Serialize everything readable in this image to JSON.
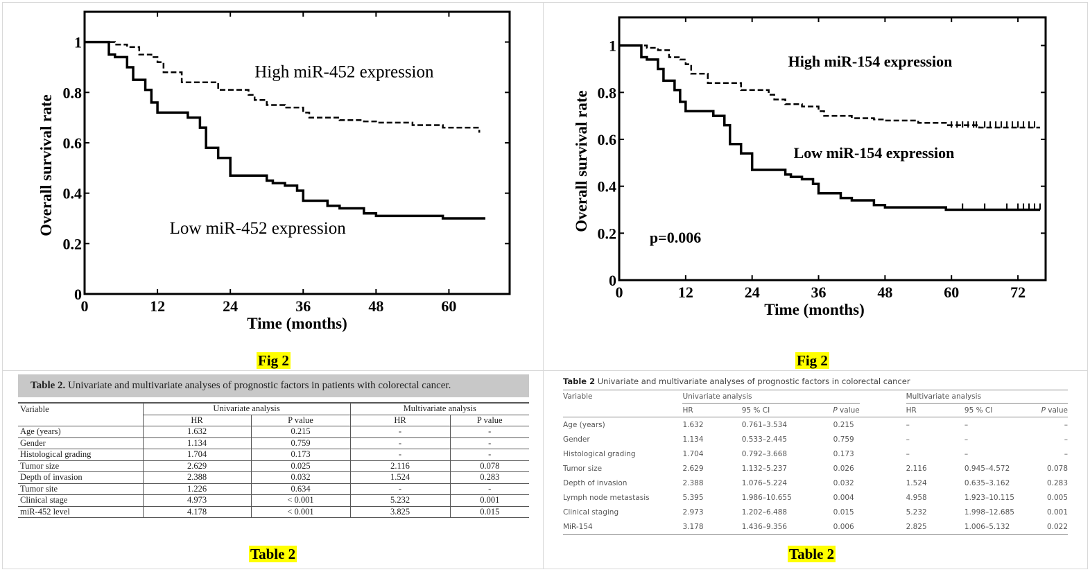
{
  "chart_data": [
    {
      "type": "line",
      "subtype": "kaplan-meier-step",
      "title": "",
      "xlabel": "Time (months)",
      "ylabel": "Overall survival rate",
      "xlim": [
        0,
        70
      ],
      "ylim": [
        0,
        1.12
      ],
      "xticks": [
        0,
        12,
        24,
        36,
        48,
        60
      ],
      "yticks": [
        0,
        0.2,
        0.4,
        0.6,
        0.8,
        1
      ],
      "ytick_labels": [
        "0",
        "0.2",
        "0.4",
        "0.6",
        "0.8",
        "1"
      ],
      "grid": false,
      "annotations": [
        {
          "text": "High miR-452 expression",
          "x": 28,
          "y": 0.86
        },
        {
          "text": "Low miR-452 expression",
          "x": 14,
          "y": 0.24
        }
      ],
      "series": [
        {
          "name": "High miR-452 expression",
          "style": "dashed",
          "x": [
            0,
            5,
            7,
            9,
            11,
            12,
            13,
            16,
            22,
            27,
            28,
            30,
            33,
            36,
            37,
            42,
            46,
            48,
            54,
            59,
            65,
            65
          ],
          "y": [
            1,
            0.99,
            0.98,
            0.95,
            0.94,
            0.92,
            0.88,
            0.84,
            0.81,
            0.79,
            0.77,
            0.75,
            0.74,
            0.72,
            0.7,
            0.69,
            0.685,
            0.68,
            0.67,
            0.66,
            0.66,
            0.64
          ]
        },
        {
          "name": "Low miR-452 expression",
          "style": "solid",
          "x": [
            0,
            4,
            5,
            7,
            8,
            10,
            11,
            12,
            17,
            19,
            20,
            22,
            24,
            30,
            31,
            33,
            35,
            36,
            40,
            42,
            46,
            48,
            59,
            66
          ],
          "y": [
            1,
            0.95,
            0.94,
            0.9,
            0.85,
            0.81,
            0.76,
            0.72,
            0.7,
            0.66,
            0.58,
            0.54,
            0.47,
            0.45,
            0.44,
            0.43,
            0.41,
            0.37,
            0.35,
            0.34,
            0.32,
            0.31,
            0.3,
            0.3
          ]
        }
      ]
    },
    {
      "type": "line",
      "subtype": "kaplan-meier-step",
      "title": "",
      "xlabel": "Time (months)",
      "ylabel": "Overall survival rate",
      "xlim": [
        0,
        77
      ],
      "ylim": [
        0,
        1.12
      ],
      "xticks": [
        0,
        12,
        24,
        36,
        48,
        60,
        72
      ],
      "yticks": [
        0,
        0.2,
        0.4,
        0.6,
        0.8,
        1
      ],
      "ytick_labels": [
        "0",
        "0.2",
        "0.4",
        "0.6",
        "0.8",
        "1"
      ],
      "grid": false,
      "annotations": [
        {
          "text": "High miR-154 expression",
          "x": 30.5,
          "y": 0.91
        },
        {
          "text": "Low miR-154 expression",
          "x": 31.5,
          "y": 0.52
        },
        {
          "text": "p=0.006",
          "x": 5.5,
          "y": 0.16
        }
      ],
      "series": [
        {
          "name": "High miR-154 expression",
          "style": "dashed",
          "x": [
            0,
            5,
            7,
            9,
            11,
            12,
            13,
            16,
            22,
            27,
            28,
            30,
            33,
            36,
            37,
            42,
            46,
            48,
            54,
            59,
            65,
            76
          ],
          "y": [
            1,
            0.99,
            0.98,
            0.95,
            0.94,
            0.92,
            0.88,
            0.84,
            0.81,
            0.79,
            0.77,
            0.75,
            0.74,
            0.72,
            0.7,
            0.69,
            0.685,
            0.68,
            0.67,
            0.66,
            0.65,
            0.65
          ],
          "censor_marks_x": [
            60,
            61,
            62,
            63,
            64,
            64.5,
            66,
            67,
            68,
            69,
            70,
            71,
            72,
            73,
            74,
            75
          ]
        },
        {
          "name": "Low miR-154 expression",
          "style": "solid",
          "x": [
            0,
            4,
            5,
            7,
            8,
            10,
            11,
            12,
            17,
            19,
            20,
            22,
            24,
            30,
            31,
            33,
            35,
            36,
            40,
            42,
            46,
            48,
            59,
            76
          ],
          "y": [
            1,
            0.95,
            0.94,
            0.9,
            0.85,
            0.81,
            0.76,
            0.72,
            0.7,
            0.66,
            0.58,
            0.54,
            0.47,
            0.45,
            0.44,
            0.43,
            0.41,
            0.37,
            0.35,
            0.34,
            0.32,
            0.31,
            0.3,
            0.3
          ],
          "censor_marks_x": [
            62,
            66,
            70,
            72,
            73,
            74,
            75,
            76
          ]
        }
      ]
    }
  ],
  "labels": {
    "fig_left": "Fig 2",
    "fig_right": "Fig 2",
    "table_left": "Table 2",
    "table_right": "Table 2"
  },
  "table_left": {
    "caption_bold": "Table 2.",
    "caption_text": " Univariate and multivariate analyses of prognostic factors in patients with colorectal cancer.",
    "header": {
      "variable": "Variable",
      "univariate": "Univariate analysis",
      "multivariate": "Multivariate analysis",
      "hr": "HR",
      "pvalue": "P value"
    },
    "rows": [
      {
        "variable": "Age (years)",
        "uni_hr": "1.632",
        "uni_p": "0.215",
        "multi_hr": "-",
        "multi_p": "-"
      },
      {
        "variable": "Gender",
        "uni_hr": "1.134",
        "uni_p": "0.759",
        "multi_hr": "-",
        "multi_p": "-"
      },
      {
        "variable": "Histological grading",
        "uni_hr": "1.704",
        "uni_p": "0.173",
        "multi_hr": "-",
        "multi_p": "-"
      },
      {
        "variable": "Tumor size",
        "uni_hr": "2.629",
        "uni_p": "0.025",
        "multi_hr": "2.116",
        "multi_p": "0.078"
      },
      {
        "variable": "Depth of invasion",
        "uni_hr": "2.388",
        "uni_p": "0.032",
        "multi_hr": "1.524",
        "multi_p": "0.283"
      },
      {
        "variable": "Tumor site",
        "uni_hr": "1.226",
        "uni_p": "0.634",
        "multi_hr": "-",
        "multi_p": "-"
      },
      {
        "variable": "Clinical stage",
        "uni_hr": "4.973",
        "uni_p": "< 0.001",
        "multi_hr": "5.232",
        "multi_p": "0.001"
      },
      {
        "variable": "miR-452 level",
        "uni_hr": "4.178",
        "uni_p": "< 0.001",
        "multi_hr": "3.825",
        "multi_p": "0.015"
      }
    ]
  },
  "table_right": {
    "caption_bold": "Table 2",
    "caption_text": " Univariate and multivariate analyses of prognostic factors in colorectal cancer",
    "header": {
      "variable": "Variable",
      "univariate": "Univariate analysis",
      "multivariate": "Multivariate analysis",
      "hr": "HR",
      "ci": "95 % CI",
      "p_italic": "P",
      "p_rest": " value"
    },
    "rows": [
      {
        "variable": "Age (years)",
        "uni_hr": "1.632",
        "uni_ci": "0.761–3.534",
        "uni_p": "0.215",
        "multi_hr": "–",
        "multi_ci": "–",
        "multi_p": "–"
      },
      {
        "variable": "Gender",
        "uni_hr": "1.134",
        "uni_ci": "0.533–2.445",
        "uni_p": "0.759",
        "multi_hr": "–",
        "multi_ci": "–",
        "multi_p": "–"
      },
      {
        "variable": "Histological grading",
        "uni_hr": "1.704",
        "uni_ci": "0.792–3.668",
        "uni_p": "0.173",
        "multi_hr": "–",
        "multi_ci": "–",
        "multi_p": "–"
      },
      {
        "variable": "Tumor size",
        "uni_hr": "2.629",
        "uni_ci": "1.132–5.237",
        "uni_p": "0.026",
        "multi_hr": "2.116",
        "multi_ci": "0.945–4.572",
        "multi_p": "0.078"
      },
      {
        "variable": "Depth of invasion",
        "uni_hr": "2.388",
        "uni_ci": "1.076–5.224",
        "uni_p": "0.032",
        "multi_hr": "1.524",
        "multi_ci": "0.635–3.162",
        "multi_p": "0.283"
      },
      {
        "variable": "Lymph node metastasis",
        "uni_hr": "5.395",
        "uni_ci": "1.986–10.655",
        "uni_p": "0.004",
        "multi_hr": "4.958",
        "multi_ci": "1.923–10.115",
        "multi_p": "0.005"
      },
      {
        "variable": "Clinical staging",
        "uni_hr": "2.973",
        "uni_ci": "1.202–6.488",
        "uni_p": "0.015",
        "multi_hr": "5.232",
        "multi_ci": "1.998–12.685",
        "multi_p": "0.001"
      },
      {
        "variable": "MiR-154",
        "uni_hr": "3.178",
        "uni_ci": "1.436–9.356",
        "uni_p": "0.006",
        "multi_hr": "2.825",
        "multi_ci": "1.006–5.132",
        "multi_p": "0.022"
      }
    ]
  },
  "colors": {
    "label_highlight": "#ffff00",
    "caption_bg": "#c8c8c8",
    "panel_border": "#d9d9d9"
  }
}
